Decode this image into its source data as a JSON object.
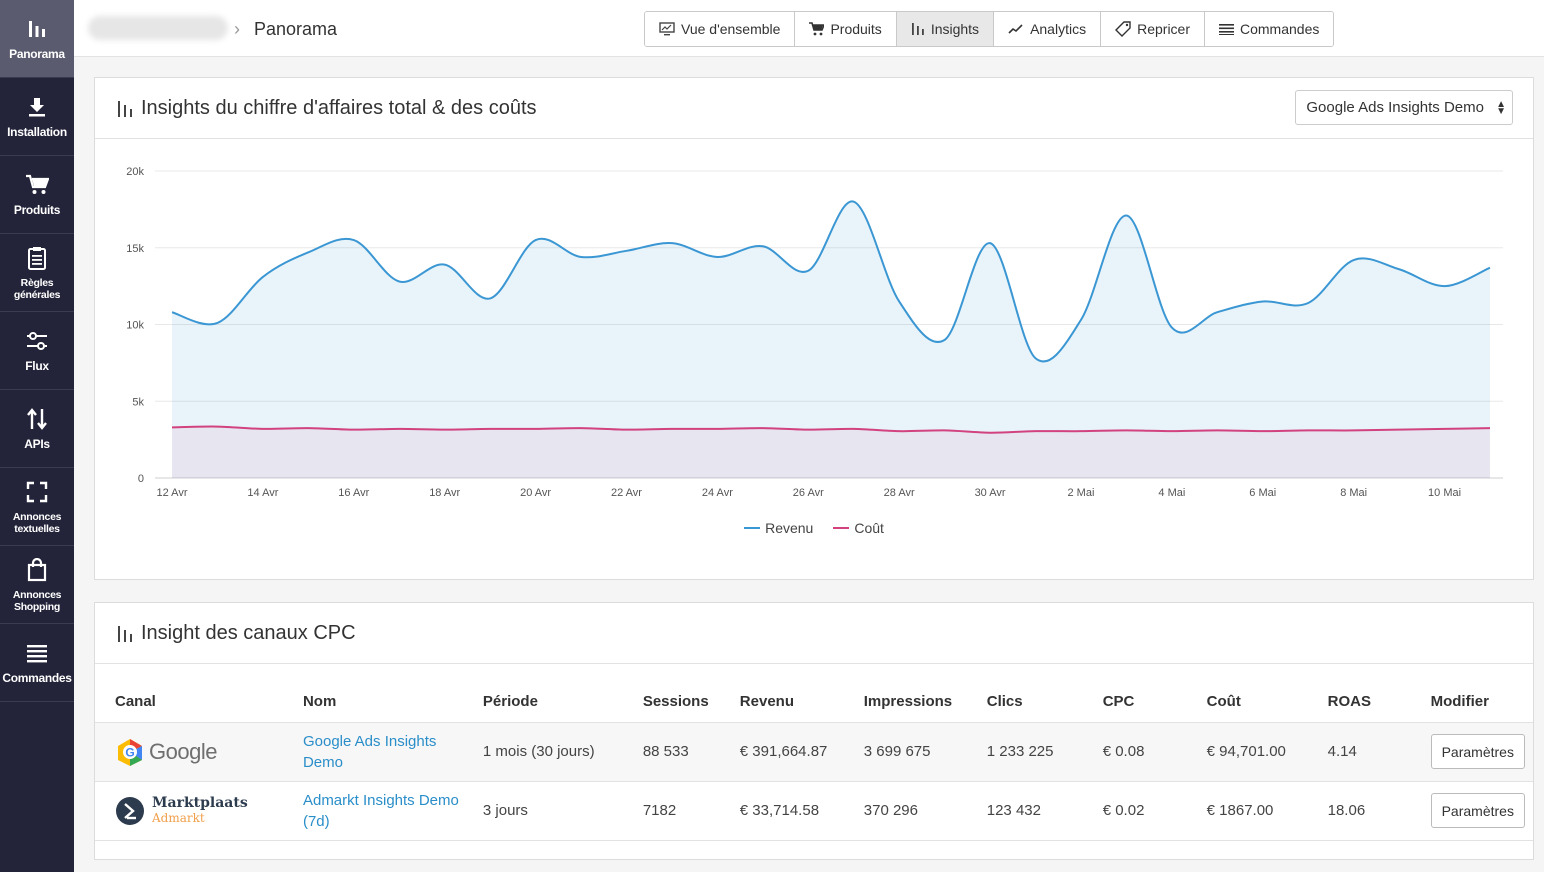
{
  "sidebar": {
    "items": [
      {
        "label": "Panorama",
        "icon": "bar-chart-icon"
      },
      {
        "label": "Installation",
        "icon": "download-icon"
      },
      {
        "label": "Produits",
        "icon": "cart-icon"
      },
      {
        "label": "Règles générales",
        "icon": "clipboard-icon"
      },
      {
        "label": "Flux",
        "icon": "sliders-icon"
      },
      {
        "label": "APIs",
        "icon": "swap-arrows-icon"
      },
      {
        "label": "Annonces textuelles",
        "icon": "frame-corners-icon"
      },
      {
        "label": "Annonces Shopping",
        "icon": "shopping-bag-icon"
      },
      {
        "label": "Commandes",
        "icon": "list-icon"
      }
    ]
  },
  "header": {
    "breadcrumb_current": "Panorama",
    "tabs": [
      {
        "label": "Vue d'ensemble"
      },
      {
        "label": "Produits"
      },
      {
        "label": "Insights"
      },
      {
        "label": "Analytics"
      },
      {
        "label": "Repricer"
      },
      {
        "label": "Commandes"
      }
    ]
  },
  "revenue_card": {
    "title": "Insights du chiffre d'affaires total & des coûts",
    "dropdown_value": "Google Ads Insights Demo"
  },
  "chart_data": {
    "type": "area",
    "title": "Insights du chiffre d'affaires total & des coûts",
    "x": [
      "12 Avr",
      "13 Avr",
      "14 Avr",
      "15 Avr",
      "16 Avr",
      "17 Avr",
      "18 Avr",
      "19 Avr",
      "20 Avr",
      "21 Avr",
      "22 Avr",
      "23 Avr",
      "24 Avr",
      "25 Avr",
      "26 Avr",
      "27 Avr",
      "28 Avr",
      "29 Avr",
      "30 Avr",
      "1 Mai",
      "2 Mai",
      "3 Mai",
      "4 Mai",
      "5 Mai",
      "6 Mai",
      "7 Mai",
      "8 Mai",
      "9 Mai",
      "10 Mai",
      "11 Mai"
    ],
    "xticks": [
      "12 Avr",
      "14 Avr",
      "16 Avr",
      "18 Avr",
      "20 Avr",
      "22 Avr",
      "24 Avr",
      "26 Avr",
      "28 Avr",
      "30 Avr",
      "2 Mai",
      "4 Mai",
      "6 Mai",
      "8 Mai",
      "10 Mai"
    ],
    "yticks": [
      "0",
      "5k",
      "10k",
      "15k",
      "20k"
    ],
    "ylim": [
      0,
      20000
    ],
    "series": [
      {
        "name": "Revenu",
        "color": "#3b97d3",
        "values": [
          10800,
          10100,
          13100,
          14700,
          15500,
          12800,
          13900,
          11700,
          15500,
          14400,
          14800,
          15300,
          14400,
          15100,
          13500,
          18000,
          11500,
          9000,
          15300,
          7800,
          10300,
          17100,
          9800,
          10800,
          11500,
          11400,
          14200,
          13600,
          12500,
          13700
        ]
      },
      {
        "name": "Coût",
        "color": "#d1427f",
        "values": [
          3300,
          3350,
          3200,
          3250,
          3150,
          3200,
          3150,
          3200,
          3200,
          3250,
          3150,
          3200,
          3200,
          3250,
          3150,
          3200,
          3050,
          3100,
          2950,
          3050,
          3050,
          3100,
          3050,
          3100,
          3050,
          3100,
          3100,
          3150,
          3200,
          3250
        ]
      }
    ]
  },
  "cpc_card": {
    "title": "Insight des canaux CPC",
    "columns": [
      "Canal",
      "Nom",
      "Période",
      "Sessions",
      "Revenu",
      "Impressions",
      "Clics",
      "CPC",
      "Coût",
      "ROAS",
      "Modifier"
    ],
    "rows": [
      {
        "channel_logo": "Google",
        "name": "Google Ads Insights Demo",
        "period": "1 mois (30 jours)",
        "sessions": "88 533",
        "revenue": "€ 391,664.87",
        "impressions": "3 699 675",
        "clicks": "1 233 225",
        "cpc": "€ 0.08",
        "cost": "€ 94,701.00",
        "roas": "4.14",
        "action": "Paramètres"
      },
      {
        "channel_logo": "Marktplaats",
        "channel_logo_sub": "Admarkt",
        "name": "Admarkt Insights Demo (7d)",
        "period": "3 jours",
        "sessions": "7182",
        "revenue": "€ 33,714.58",
        "impressions": "370 296",
        "clicks": "123 432",
        "cpc": "€ 0.02",
        "cost": "€ 1867.00",
        "roas": "18.06",
        "action": "Paramètres"
      }
    ]
  }
}
